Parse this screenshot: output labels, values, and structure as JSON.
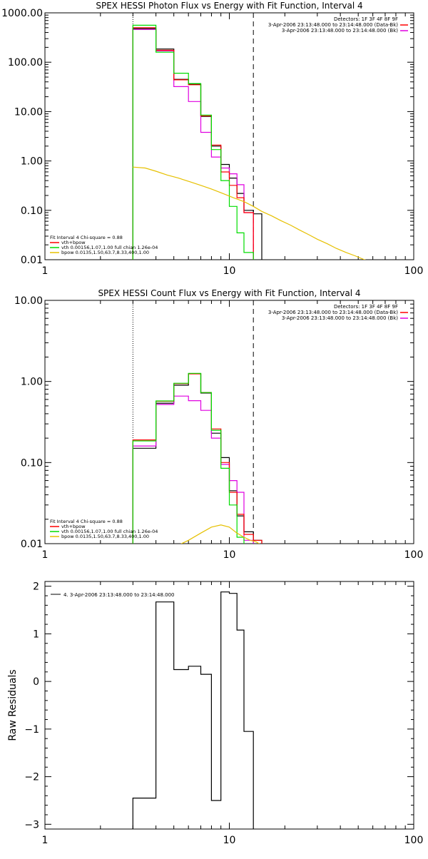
{
  "colors": {
    "data": "#000000",
    "bk": "#e000e0",
    "fit": "#00dd00",
    "red": "#ff0000",
    "vth": "#00dd00",
    "bpow": "#e6c000"
  },
  "panels": [
    {
      "title": "SPEX HESSI Photon Flux vs Energy with Fit Function, Interval 4",
      "xlim": [
        1,
        100
      ],
      "ylim": [
        0.01,
        1000
      ],
      "ylog": true,
      "yticks": [
        0.01,
        0.1,
        1,
        10,
        100,
        1000
      ],
      "yticklabels": [
        "0.01",
        "0.10",
        "1.00",
        "10.00",
        "100.00",
        "1000.00"
      ],
      "xticks": [
        1,
        10,
        100
      ],
      "xticklabels": [
        "1",
        "10",
        "100"
      ],
      "ylabel": "",
      "dotted_x": 3.0,
      "dashed_x": 13.5,
      "legend_top": [
        "Detectors: 1F 3F 4F 8F 9F",
        "3-Apr-2006 23:13:48.000 to 23:14:48.000 (Data-Bk)",
        "3-Apr-2006 23:13:48.000 to 23:14:48.000 (Bk)"
      ],
      "legend_bottom": [
        "Fit Interval 4   Chi-square = 0.88",
        "vth+bpow",
        "vth 0.00156,1.07,1.00  full chian 1.26e-04",
        "bpow 0.0135,1.50,63.7,8.33,400,1.00"
      ]
    },
    {
      "title": "SPEX HESSI Count Flux vs Energy with Fit Function, Interval 4",
      "xlim": [
        1,
        100
      ],
      "ylim": [
        0.01,
        10
      ],
      "ylog": true,
      "yticks": [
        0.01,
        0.1,
        1,
        10
      ],
      "yticklabels": [
        "0.01",
        "0.10",
        "1.00",
        "10.00"
      ],
      "xticks": [
        1,
        10,
        100
      ],
      "xticklabels": [
        "1",
        "10",
        "100"
      ],
      "ylabel": "",
      "dotted_x": 3.0,
      "dashed_x": 13.5,
      "legend_top": [
        "Detectors: 1F 3F 4F 8F 9F",
        "3-Apr-2006 23:13:48.000 to 23:14:48.000 (Data-Bk)",
        "3-Apr-2006 23:13:48.000 to 23:14:48.000 (Bk)"
      ],
      "legend_bottom": [
        "Fit Interval 4   Chi-square = 0.88",
        "vth+bpow",
        "vth 0.00156,1.07,1.00  full chian 1.26e-04",
        "bpow 0.0135,1.50,63.7,8.33,400,1.00"
      ]
    },
    {
      "title": "",
      "xlim": [
        1,
        100
      ],
      "ylim": [
        -3.1,
        2.1
      ],
      "ylog": false,
      "yticks": [
        -3,
        -2,
        -1,
        0,
        1,
        2
      ],
      "yticklabels": [
        "−3",
        "−2",
        "−1",
        "0",
        "1",
        "2"
      ],
      "xticks": [
        1,
        10,
        100
      ],
      "xticklabels": [
        "1",
        "10",
        "100"
      ],
      "ylabel": "Raw Residuals",
      "legend_top": [
        "4. 3-Apr-2006 23:13:48.000 to 23:14:48.000"
      ]
    }
  ],
  "chart_data": [
    {
      "type": "line",
      "title": "SPEX HESSI Photon Flux vs Energy with Fit Function, Interval 4",
      "xlim": [
        1,
        100
      ],
      "ylim": [
        0.01,
        1000
      ],
      "xscale": "log",
      "yscale": "log",
      "bin_edges": [
        3.0,
        4.0,
        5.0,
        6.0,
        7.0,
        8.0,
        9.0,
        10.0,
        11.0,
        12.0,
        13.5,
        15.0
      ],
      "series": [
        {
          "name": "Data-Bk",
          "color": "#000000",
          "values": [
            480,
            185,
            45,
            36,
            8.0,
            2.0,
            0.85,
            0.45,
            0.22,
            0.1,
            0.085
          ]
        },
        {
          "name": "Bk",
          "color": "#e000e0",
          "values": [
            460,
            170,
            32,
            16,
            3.8,
            1.2,
            0.72,
            0.55,
            0.33,
            0.09
          ]
        },
        {
          "name": "vth+bpow",
          "color": "#ff0000",
          "values": [
            500,
            175,
            44,
            35,
            8.2,
            2.1,
            0.6,
            0.32,
            0.18,
            0.09
          ]
        },
        {
          "name": "vth",
          "color": "#00dd00",
          "values": [
            560,
            160,
            60,
            37,
            8.5,
            1.7,
            0.4,
            0.12,
            0.035,
            0.014
          ]
        },
        {
          "name": "bpow",
          "color": "#e6c000",
          "x": [
            3.0,
            3.5,
            4.0,
            4.6,
            5.3,
            6.1,
            7.0,
            8.0,
            9.2,
            10.5,
            12.0,
            13.5,
            15.0,
            17.0,
            19.0,
            21.5,
            24.0,
            27.0,
            30.0,
            34.0,
            38.0,
            43.0,
            48.0,
            54.0,
            60.0
          ],
          "values": [
            0.75,
            0.72,
            0.62,
            0.52,
            0.45,
            0.38,
            0.32,
            0.27,
            0.22,
            0.18,
            0.15,
            0.12,
            0.095,
            0.077,
            0.062,
            0.05,
            0.04,
            0.032,
            0.026,
            0.021,
            0.017,
            0.014,
            0.012,
            0.01,
            0.009
          ]
        }
      ]
    },
    {
      "type": "line",
      "title": "SPEX HESSI Count Flux vs Energy with Fit Function, Interval 4",
      "xlim": [
        1,
        100
      ],
      "ylim": [
        0.01,
        10
      ],
      "xscale": "log",
      "yscale": "log",
      "bin_edges": [
        3.0,
        4.0,
        5.0,
        6.0,
        7.0,
        8.0,
        9.0,
        10.0,
        11.0,
        12.0,
        13.5,
        15.0
      ],
      "series": [
        {
          "name": "Data-Bk",
          "color": "#000000",
          "values": [
            0.15,
            0.54,
            0.9,
            1.25,
            0.72,
            0.23,
            0.115,
            0.045,
            0.022,
            0.014,
            0.011
          ]
        },
        {
          "name": "Bk",
          "color": "#e000e0",
          "values": [
            0.16,
            0.52,
            0.66,
            0.58,
            0.44,
            0.2,
            0.095,
            0.06,
            0.043,
            0.011
          ]
        },
        {
          "name": "vth+bpow",
          "color": "#ff0000",
          "values": [
            0.19,
            0.57,
            0.94,
            1.24,
            0.73,
            0.26,
            0.1,
            0.043,
            0.023,
            0.013,
            0.011
          ]
        },
        {
          "name": "vth",
          "color": "#00dd00",
          "values": [
            0.185,
            0.575,
            0.95,
            1.26,
            0.73,
            0.25,
            0.085,
            0.03,
            0.012,
            0.006
          ]
        },
        {
          "name": "bpow",
          "color": "#e6c000",
          "x": [
            5.0,
            6.0,
            7.0,
            8.0,
            9.0,
            10.0,
            11.0,
            12.0,
            13.0,
            14.0,
            15.0
          ],
          "values": [
            0.009,
            0.011,
            0.0135,
            0.016,
            0.017,
            0.016,
            0.0135,
            0.012,
            0.011,
            0.0105,
            0.0095
          ]
        }
      ]
    },
    {
      "type": "line",
      "title": "",
      "xlabel": "",
      "ylabel": "Raw Residuals",
      "xlim": [
        1,
        100
      ],
      "ylim": [
        -3.1,
        2.1
      ],
      "xscale": "log",
      "bin_edges": [
        3.0,
        4.0,
        5.0,
        6.0,
        7.0,
        8.0,
        9.0,
        10.0,
        11.0,
        12.0,
        13.5
      ],
      "series": [
        {
          "name": "4. 3-Apr-2006 23:13:48.000 to 23:14:48.000",
          "color": "#000000",
          "values": [
            -2.45,
            1.67,
            0.25,
            0.32,
            0.15,
            -2.5,
            1.88,
            1.85,
            1.08,
            -1.05
          ]
        }
      ]
    }
  ]
}
